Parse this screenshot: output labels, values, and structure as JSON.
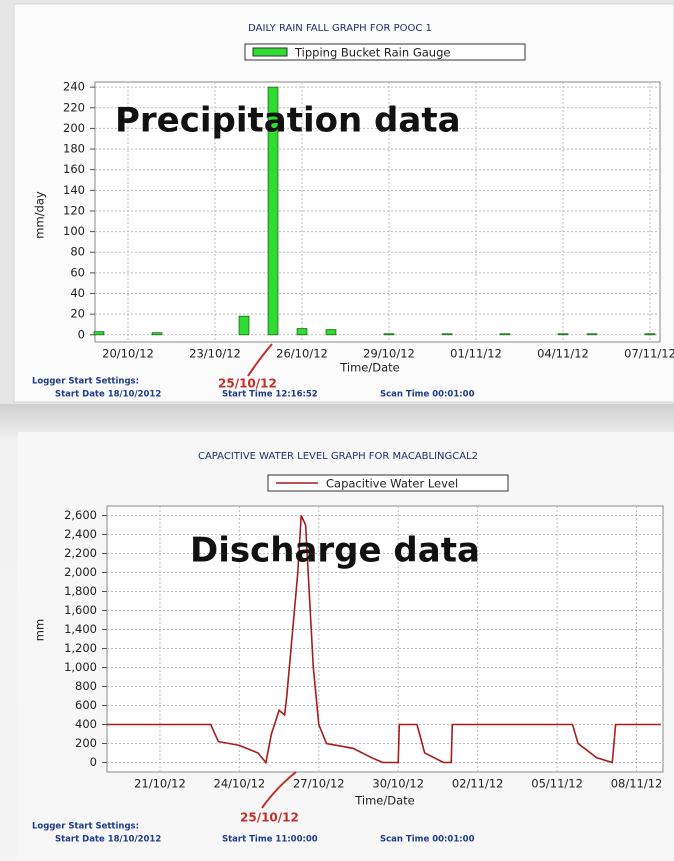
{
  "chart_data": [
    {
      "type": "bar",
      "title": "DAILY RAIN FALL GRAPH FOR POOC 1",
      "y_label": "mm/day",
      "x_label": "Time/Date",
      "categories": [
        null,
        "20/10/12",
        null,
        null,
        "23/10/12",
        null,
        null,
        "26/10/12",
        null,
        null,
        "29/10/12",
        null,
        null,
        "01/11/12",
        null,
        null,
        "04/11/12",
        null,
        null,
        "07/11/12"
      ],
      "series": [
        {
          "name": "Tipping Bucket Rain Gauge",
          "color": "#2fdc2f",
          "values": [
            3,
            0,
            2,
            0,
            0,
            18,
            240,
            6,
            5,
            0,
            1,
            0,
            1,
            0,
            1,
            0,
            1,
            1,
            0,
            1
          ]
        }
      ],
      "ylim": [
        -7,
        245
      ],
      "yticks": [
        0,
        20,
        40,
        60,
        80,
        100,
        120,
        140,
        160,
        180,
        200,
        220,
        240
      ],
      "grid": true,
      "annotations": [
        "Precipitation data",
        "25/10/12"
      ],
      "logger": {
        "heading": "Logger Start Settings:",
        "start_date": "Start Date 18/10/2012",
        "start_time": "Start Time 12:16:52",
        "scan_time": "Scan Time 00:01:00"
      }
    },
    {
      "type": "line",
      "title": "CAPACITIVE WATER LEVEL GRAPH FOR MACABLINGCAL2",
      "y_label": "mm",
      "x_label": "Time/Date",
      "x": [
        "2012-10-19T00:00",
        "2012-10-22T22:00",
        "2012-10-23T05:00",
        "2012-10-24T00:00",
        "2012-10-24T17:00",
        "2012-10-25T00:00",
        "2012-10-25T05:00",
        "2012-10-25T12:00",
        "2012-10-25T17:00",
        "2012-10-25T19:00",
        "2012-10-26T05:00",
        "2012-10-26T08:00",
        "2012-10-26T12:00",
        "2012-10-26T19:00",
        "2012-10-27T00:00",
        "2012-10-27T07:00",
        "2012-10-28T07:00",
        "2012-10-29T00:00",
        "2012-10-29T10:00",
        "2012-10-30T00:00",
        "2012-10-30T01:00",
        "2012-10-30T17:00",
        "2012-10-31T00:00",
        "2012-10-31T17:00",
        "2012-11-01T00:00",
        "2012-11-01T01:00",
        "2012-11-05T14:00",
        "2012-11-05T19:00",
        "2012-11-06T12:00",
        "2012-11-07T02:00",
        "2012-11-07T05:00",
        "2012-11-08T22:00"
      ],
      "series": [
        {
          "name": "Capacitive Water Level",
          "color": "#a81c1c",
          "values": [
            400,
            400,
            220,
            180,
            100,
            0,
            300,
            550,
            500,
            700,
            2000,
            2600,
            2500,
            1000,
            400,
            200,
            150,
            50,
            0,
            0,
            400,
            400,
            100,
            0,
            0,
            400,
            400,
            200,
            50,
            0,
            400,
            400
          ]
        }
      ],
      "xlim": [
        "2012-10-19T00:00",
        "2012-11-09T00:00"
      ],
      "xticks": [
        {
          "value": "2012-10-21T00:00",
          "label": "21/10/12"
        },
        {
          "value": "2012-10-24T00:00",
          "label": "24/10/12"
        },
        {
          "value": "2012-10-27T00:00",
          "label": "27/10/12"
        },
        {
          "value": "2012-10-30T00:00",
          "label": "30/10/12"
        },
        {
          "value": "2012-11-02T00:00",
          "label": "02/11/12"
        },
        {
          "value": "2012-11-05T00:00",
          "label": "05/11/12"
        },
        {
          "value": "2012-11-08T00:00",
          "label": "08/11/12"
        }
      ],
      "ylim": [
        -100,
        2700
      ],
      "yticks": [
        0,
        200,
        400,
        600,
        800,
        {
          "value": 1000,
          "label": "1,000"
        },
        {
          "value": 1200,
          "label": "1,200"
        },
        {
          "value": 1400,
          "label": "1,400"
        },
        {
          "value": 1600,
          "label": "1,600"
        },
        {
          "value": 1800,
          "label": "1,800"
        },
        {
          "value": 2000,
          "label": "2,000"
        },
        {
          "value": 2200,
          "label": "2,200"
        },
        {
          "value": 2400,
          "label": "2,400"
        },
        {
          "value": 2600,
          "label": "2,600"
        }
      ],
      "grid": true,
      "annotations": [
        "Discharge data",
        "25/10/12"
      ],
      "logger": {
        "heading": "Logger Start Settings:",
        "start_date": "Start Date 18/10/2012",
        "start_time": "Start Time 11:00:00",
        "scan_time": "Scan Time 00:01:00"
      }
    }
  ]
}
